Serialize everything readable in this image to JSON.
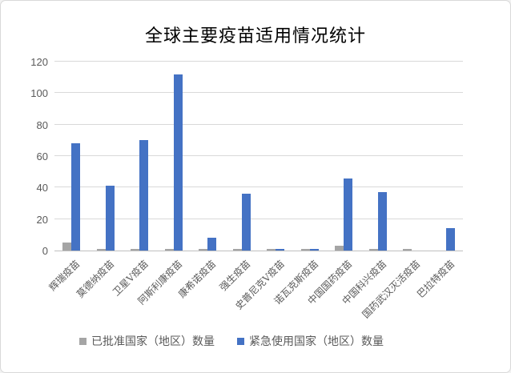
{
  "chart_data": {
    "type": "bar",
    "title": "全球主要疫苗适用情况统计",
    "categories": [
      "辉瑞疫苗",
      "莫德纳疫苗",
      "卫星V疫苗",
      "阿斯利康疫苗",
      "康希诺疫苗",
      "强生疫苗",
      "史普尼克V疫苗",
      "诺瓦克斯疫苗",
      "中国国药疫苗",
      "中国科兴疫苗",
      "国药武汉灭活疫苗",
      "巴拉特疫苗"
    ],
    "series": [
      {
        "name": "已批准国家（地区）数量",
        "color": "#a5a5a5",
        "values": [
          5,
          1,
          1,
          1,
          1,
          1,
          1,
          1,
          3,
          1,
          1,
          0
        ]
      },
      {
        "name": "紧急使用国家（地区）数量",
        "color": "#4472c4",
        "values": [
          68,
          41,
          70,
          112,
          8,
          36,
          1,
          1,
          46,
          37,
          0,
          14
        ]
      }
    ],
    "xlabel": "",
    "ylabel": "",
    "ylim": [
      0,
      120
    ],
    "yticks": [
      0,
      20,
      40,
      60,
      80,
      100,
      120
    ],
    "grid": true,
    "gridline_color": "#d9d9d9",
    "axis_line_color": "#bfbfbf",
    "tick_label_color": "#595959",
    "legend_position": "bottom"
  }
}
